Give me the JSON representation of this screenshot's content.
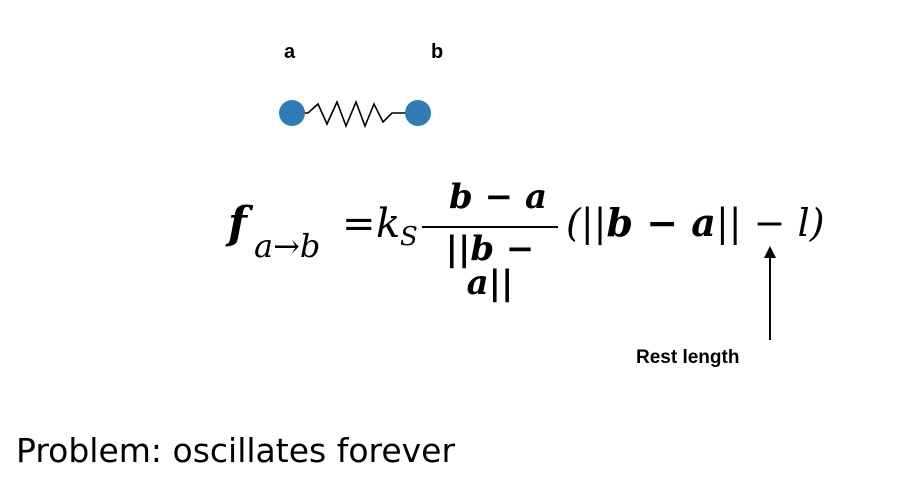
{
  "diagram": {
    "node_a_label": "a",
    "node_b_label": "b",
    "node_color": "#2e7bb5",
    "spring_color": "#000000"
  },
  "formula": {
    "lhs_symbol": "f",
    "lhs_subscript": "a→b",
    "equals": "=",
    "k": "k",
    "k_subscript": "S",
    "numerator": "b − a",
    "denominator": "||b − a||",
    "rest_open": "(||",
    "rest_vec": "b − a",
    "rest_close": "|| − l)"
  },
  "annotation": {
    "rest_length_label": "Rest length"
  },
  "caption": {
    "text": "Problem: oscillates forever"
  }
}
